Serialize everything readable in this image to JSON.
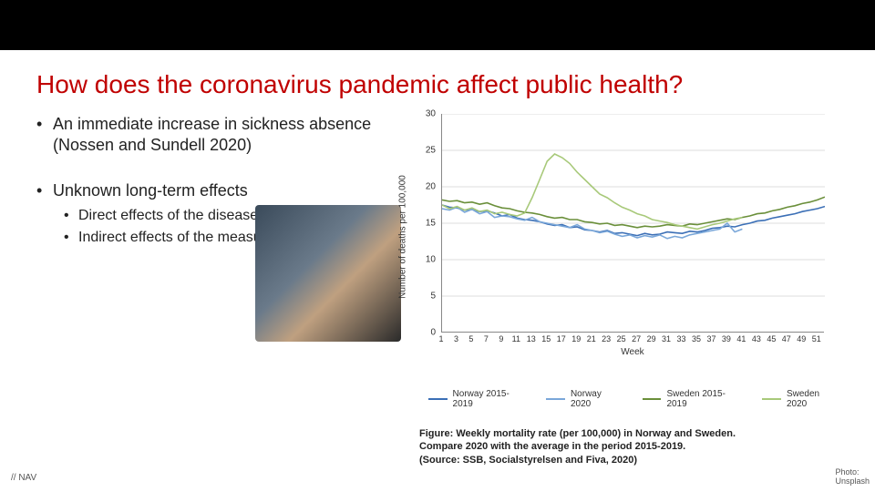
{
  "title": "How does the coronavirus pandemic affect public health?",
  "title_color": "#c00000",
  "bullets": {
    "b1": "An immediate increase in sickness absence (Nossen and Sundell 2020)",
    "b2": "Unknown long-term effects",
    "b2a": "Direct effects of the disease",
    "b2b": "Indirect effects of the measures"
  },
  "chart": {
    "type": "line",
    "ylabel": "Number of deaths per 100,000",
    "xlabel": "Week",
    "ylim": [
      0,
      30
    ],
    "ytick_step": 5,
    "yticks": [
      "0",
      "5",
      "10",
      "15",
      "20",
      "25",
      "30"
    ],
    "xlim": [
      1,
      52
    ],
    "xticks": [
      1,
      3,
      5,
      7,
      9,
      11,
      13,
      15,
      17,
      19,
      21,
      23,
      25,
      27,
      29,
      31,
      33,
      35,
      37,
      39,
      41,
      43,
      45,
      47,
      49,
      51
    ],
    "grid_color": "#dddddd",
    "axis_color": "#888888",
    "background_color": "#ffffff",
    "label_fontsize": 10,
    "tick_fontsize": 9,
    "series": [
      {
        "name": "Norway 2015-2019",
        "color": "#3b6fb6",
        "values": [
          17.5,
          17.2,
          17.1,
          16.8,
          16.9,
          16.6,
          16.7,
          16.4,
          16.0,
          16.2,
          15.7,
          15.5,
          15.4,
          15.2,
          14.9,
          14.7,
          14.8,
          14.4,
          14.5,
          14.1,
          14.0,
          13.8,
          14.0,
          13.6,
          13.7,
          13.5,
          13.3,
          13.6,
          13.4,
          13.5,
          13.8,
          13.7,
          13.6,
          13.9,
          13.8,
          14.0,
          14.3,
          14.4,
          14.6,
          14.5,
          14.8,
          15.0,
          15.3,
          15.4,
          15.7,
          15.9,
          16.1,
          16.3,
          16.6,
          16.8,
          17.0,
          17.3
        ]
      },
      {
        "name": "Norway 2020",
        "color": "#7aa7d9",
        "values": [
          17.0,
          16.8,
          17.2,
          16.5,
          16.9,
          16.3,
          16.6,
          15.8,
          16.0,
          15.9,
          15.6,
          15.4,
          15.8,
          15.2,
          15.0,
          14.8,
          14.6,
          14.4,
          14.8,
          14.2,
          14.0,
          13.7,
          13.9,
          13.5,
          13.2,
          13.4,
          13.0,
          13.3,
          13.1,
          13.4,
          12.9,
          13.2,
          13.0,
          13.4,
          13.6,
          13.8,
          14.0,
          14.2,
          15.0,
          13.8,
          14.2
        ]
      },
      {
        "name": "Sweden 2015-2019",
        "color": "#6a8f3a",
        "values": [
          18.2,
          18.0,
          18.1,
          17.8,
          17.9,
          17.6,
          17.8,
          17.4,
          17.1,
          17.0,
          16.7,
          16.5,
          16.4,
          16.2,
          15.9,
          15.7,
          15.8,
          15.5,
          15.5,
          15.2,
          15.1,
          14.9,
          15.0,
          14.7,
          14.8,
          14.6,
          14.4,
          14.6,
          14.5,
          14.6,
          14.8,
          14.7,
          14.6,
          14.9,
          14.8,
          15.0,
          15.2,
          15.4,
          15.6,
          15.5,
          15.8,
          16.0,
          16.3,
          16.4,
          16.7,
          16.9,
          17.2,
          17.4,
          17.7,
          17.9,
          18.2,
          18.6
        ]
      },
      {
        "name": "Sweden 2020",
        "color": "#a8c97a",
        "values": [
          17.5,
          17.0,
          17.3,
          16.8,
          17.1,
          16.6,
          16.8,
          16.3,
          16.5,
          16.2,
          16.0,
          16.4,
          18.5,
          21.0,
          23.5,
          24.5,
          24.0,
          23.2,
          22.0,
          21.0,
          20.0,
          19.0,
          18.5,
          17.8,
          17.2,
          16.8,
          16.3,
          16.0,
          15.5,
          15.3,
          15.1,
          14.8,
          14.6,
          14.4,
          14.2,
          14.5,
          14.8,
          15.0,
          15.3,
          15.6,
          15.8
        ]
      }
    ]
  },
  "legend": {
    "l1": "Norway 2015-2019",
    "l2": "Norway 2020",
    "l3": "Sweden 2015-2019",
    "l4": "Sweden 2020"
  },
  "caption": {
    "line1": "Figure: Weekly mortality rate (per 100,000) in Norway and Sweden.",
    "line2": "Compare 2020 with the average in the period 2015-2019.",
    "line3": "(Source: SSB, Socialstyrelsen and Fiva, 2020)"
  },
  "photo_credit": {
    "l1": "Photo:",
    "l2": "Unsplash"
  },
  "footer": "// NAV"
}
